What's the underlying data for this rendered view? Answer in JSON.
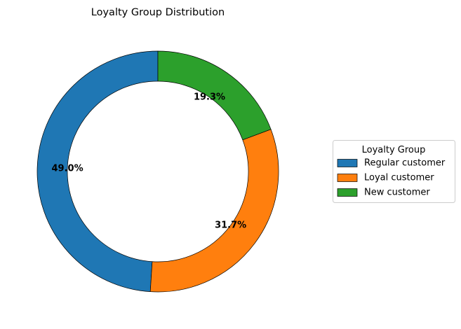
{
  "chart_data": {
    "type": "pie",
    "title": "Loyalty Group Distribution",
    "legend_title": "Loyalty Group",
    "legend_position": "center-right",
    "slices": [
      {
        "label": "Regular customer",
        "value": 49.0,
        "pct_label": "49.0%",
        "color": "#1f77b4"
      },
      {
        "label": "Loyal customer",
        "value": 31.7,
        "pct_label": "31.7%",
        "color": "#ff7f0e"
      },
      {
        "label": "New customer",
        "value": 19.3,
        "pct_label": "19.3%",
        "color": "#2ca02c"
      }
    ]
  }
}
